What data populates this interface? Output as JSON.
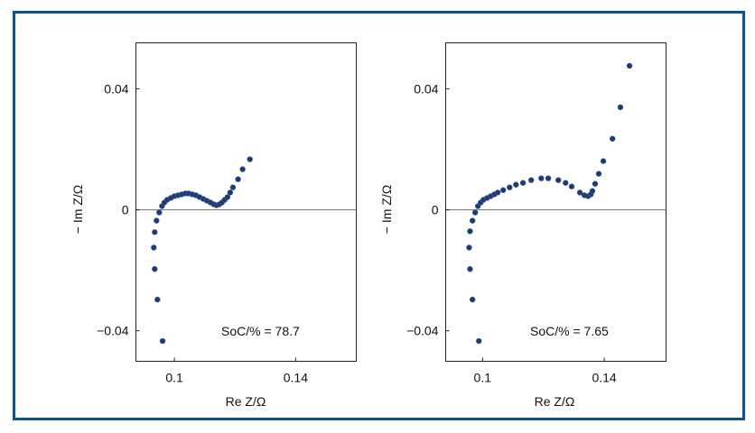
{
  "figure": {
    "frame_color": "#0b5390",
    "marker_color": "#1e3a6e"
  },
  "chart_data": [
    {
      "type": "scatter",
      "title": "",
      "xlabel": "Re Z/Ω",
      "ylabel": "− Im Z/Ω",
      "xlim": [
        0.0873,
        0.16
      ],
      "ylim": [
        -0.0501,
        0.0552
      ],
      "xticks": [
        0.1,
        0.14
      ],
      "xtick_labels": [
        "0.1",
        "0.14"
      ],
      "yticks": [
        0.04,
        0,
        -0.04
      ],
      "ytick_labels": [
        "0.04",
        "0",
        "−0.04"
      ],
      "grid": false,
      "zero_line": true,
      "annotation": "SoC/% = 78.7",
      "annotation_position": "bottom-right",
      "series": [
        {
          "name": "SoC 78.7%",
          "x": [
            0.0961,
            0.0944,
            0.0935,
            0.0932,
            0.0935,
            0.0941,
            0.095,
            0.0959,
            0.0967,
            0.0976,
            0.0988,
            0.1,
            0.1012,
            0.1024,
            0.1036,
            0.1047,
            0.1059,
            0.1071,
            0.1083,
            0.1095,
            0.1107,
            0.1119,
            0.113,
            0.1139,
            0.1148,
            0.1157,
            0.1166,
            0.1175,
            0.1184,
            0.1193,
            0.121,
            0.1225,
            0.1249
          ],
          "y": [
            -0.0434,
            -0.0297,
            -0.0196,
            -0.0125,
            -0.0074,
            -0.0036,
            -0.0009,
            0.0012,
            0.0024,
            0.0033,
            0.0039,
            0.0045,
            0.0048,
            0.0051,
            0.0054,
            0.0054,
            0.0051,
            0.0048,
            0.0042,
            0.0036,
            0.003,
            0.0024,
            0.0018,
            0.0015,
            0.0018,
            0.0024,
            0.0033,
            0.0042,
            0.0057,
            0.0074,
            0.0101,
            0.0134,
            0.0167
          ]
        }
      ]
    },
    {
      "type": "scatter",
      "title": "",
      "xlabel": "Re Z/Ω",
      "ylabel": "− Im Z/Ω",
      "xlim": [
        0.0879,
        0.1603
      ],
      "ylim": [
        -0.0501,
        0.0552
      ],
      "xticks": [
        0.1,
        0.14
      ],
      "xtick_labels": [
        "0.1",
        "0.14"
      ],
      "yticks": [
        0.04,
        0,
        -0.04
      ],
      "ytick_labels": [
        "0.04",
        "0",
        "−0.04"
      ],
      "grid": false,
      "zero_line": true,
      "annotation": "SoC/% = 7.65",
      "annotation_position": "bottom-right",
      "series": [
        {
          "name": "SoC 7.65%",
          "x": [
            0.0988,
            0.0967,
            0.0959,
            0.0956,
            0.0959,
            0.0967,
            0.0976,
            0.0985,
            0.0994,
            0.1003,
            0.1015,
            0.1027,
            0.1039,
            0.105,
            0.1068,
            0.1089,
            0.111,
            0.1133,
            0.116,
            0.1193,
            0.1216,
            0.1249,
            0.1273,
            0.1293,
            0.132,
            0.1335,
            0.1347,
            0.1356,
            0.1361,
            0.137,
            0.1382,
            0.1397,
            0.1427,
            0.1453,
            0.1483
          ],
          "y": [
            -0.0434,
            -0.0297,
            -0.0196,
            -0.0125,
            -0.0071,
            -0.0036,
            -0.0009,
            0.0012,
            0.0024,
            0.0033,
            0.0039,
            0.0045,
            0.0051,
            0.0057,
            0.0065,
            0.0074,
            0.0083,
            0.0089,
            0.0098,
            0.0104,
            0.0104,
            0.0098,
            0.0089,
            0.0077,
            0.0057,
            0.0048,
            0.0045,
            0.0051,
            0.0062,
            0.0086,
            0.0119,
            0.0161,
            0.0235,
            0.0339,
            0.0476
          ]
        }
      ]
    }
  ]
}
